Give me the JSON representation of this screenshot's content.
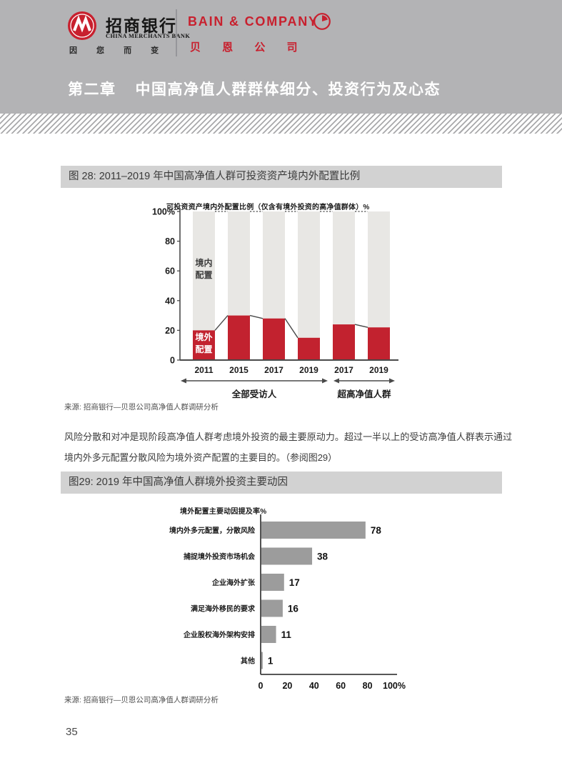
{
  "header": {
    "cmb": {
      "name_cn": "招商银行",
      "name_en": "CHINA MERCHANTS BANK",
      "slogan": "因 您 而 变"
    },
    "bain": {
      "name_en": "BAIN & COMPANY",
      "name_cn": "贝 恩 公 司"
    }
  },
  "chapter": {
    "number": "第二章",
    "title": "中国高净值人群群体细分、投资行为及心态"
  },
  "figure28": {
    "label": "图 28: 2011–2019 年中国高净值人群可投资资产境内外配置比例",
    "source": "来源: 招商银行—贝恩公司高净值人群调研分析"
  },
  "paragraph": "风险分散和对冲是现阶段高净值人群考虑境外投资的最主要原动力。超过一半以上的受访高净值人群表示通过境内外多元配置分散风险为境外资产配置的主要目的。（参阅图29）",
  "figure29": {
    "label": "图29: 2019 年中国高净值人群境外投资主要动因",
    "source": "来源: 招商银行—贝恩公司高净值人群调研分析"
  },
  "page_number": "35",
  "colors": {
    "header_bg": "#b3b3b5",
    "figure_bar_bg": "#d2d2d2",
    "cmb_red": "#c8202e",
    "overseas_red": "#c2222f",
    "domestic_gray": "#e8e7e4",
    "hbar_gray": "#9c9c9c",
    "axis": "#4a4a4a"
  },
  "chart_data": [
    {
      "type": "bar",
      "stacked": true,
      "title": "可投资资产境内外配置比例（仅含有境外投资的高净值群体）%",
      "categories": [
        "2011",
        "2015",
        "2017",
        "2019",
        "2017",
        "2019"
      ],
      "series": [
        {
          "name": "境外配置",
          "label_lines": [
            "境外",
            "配置"
          ],
          "color": "#c2222f",
          "values": [
            20,
            30,
            28,
            15,
            24,
            22
          ]
        },
        {
          "name": "境内配置",
          "label_lines": [
            "境内",
            "配置"
          ],
          "color": "#e8e7e4",
          "values": [
            80,
            70,
            72,
            85,
            76,
            78
          ]
        }
      ],
      "ylim": [
        0,
        100
      ],
      "ytick_values": [
        0,
        20,
        40,
        60,
        80,
        100
      ],
      "ytick_labels": [
        "0",
        "20",
        "40",
        "60",
        "80",
        "100%"
      ],
      "connectors": [
        [
          0,
          1
        ],
        [
          1,
          2
        ],
        [
          2,
          3
        ],
        [
          4,
          5
        ]
      ],
      "group_labels": [
        {
          "label": "全部受访人",
          "from": 0,
          "to": 3
        },
        {
          "label": "超高净值人群",
          "from": 4,
          "to": 5
        }
      ],
      "legend_position": "inside-first-bar",
      "grid": false
    },
    {
      "type": "bar",
      "orientation": "horizontal",
      "title": "境外配置主要动因提及率%",
      "categories": [
        "境内外多元配置，分散风险",
        "捕捉境外投资市场机会",
        "企业海外扩张",
        "满足海外移民的要求",
        "企业股权海外架构安排",
        "其他"
      ],
      "values": [
        78,
        38,
        17,
        16,
        11,
        1
      ],
      "xlim": [
        0,
        100
      ],
      "xtick_values": [
        0,
        20,
        40,
        60,
        80,
        100
      ],
      "xtick_labels": [
        "0",
        "20",
        "40",
        "60",
        "80",
        "100%"
      ],
      "bar_color": "#9c9c9c",
      "grid": false
    }
  ]
}
